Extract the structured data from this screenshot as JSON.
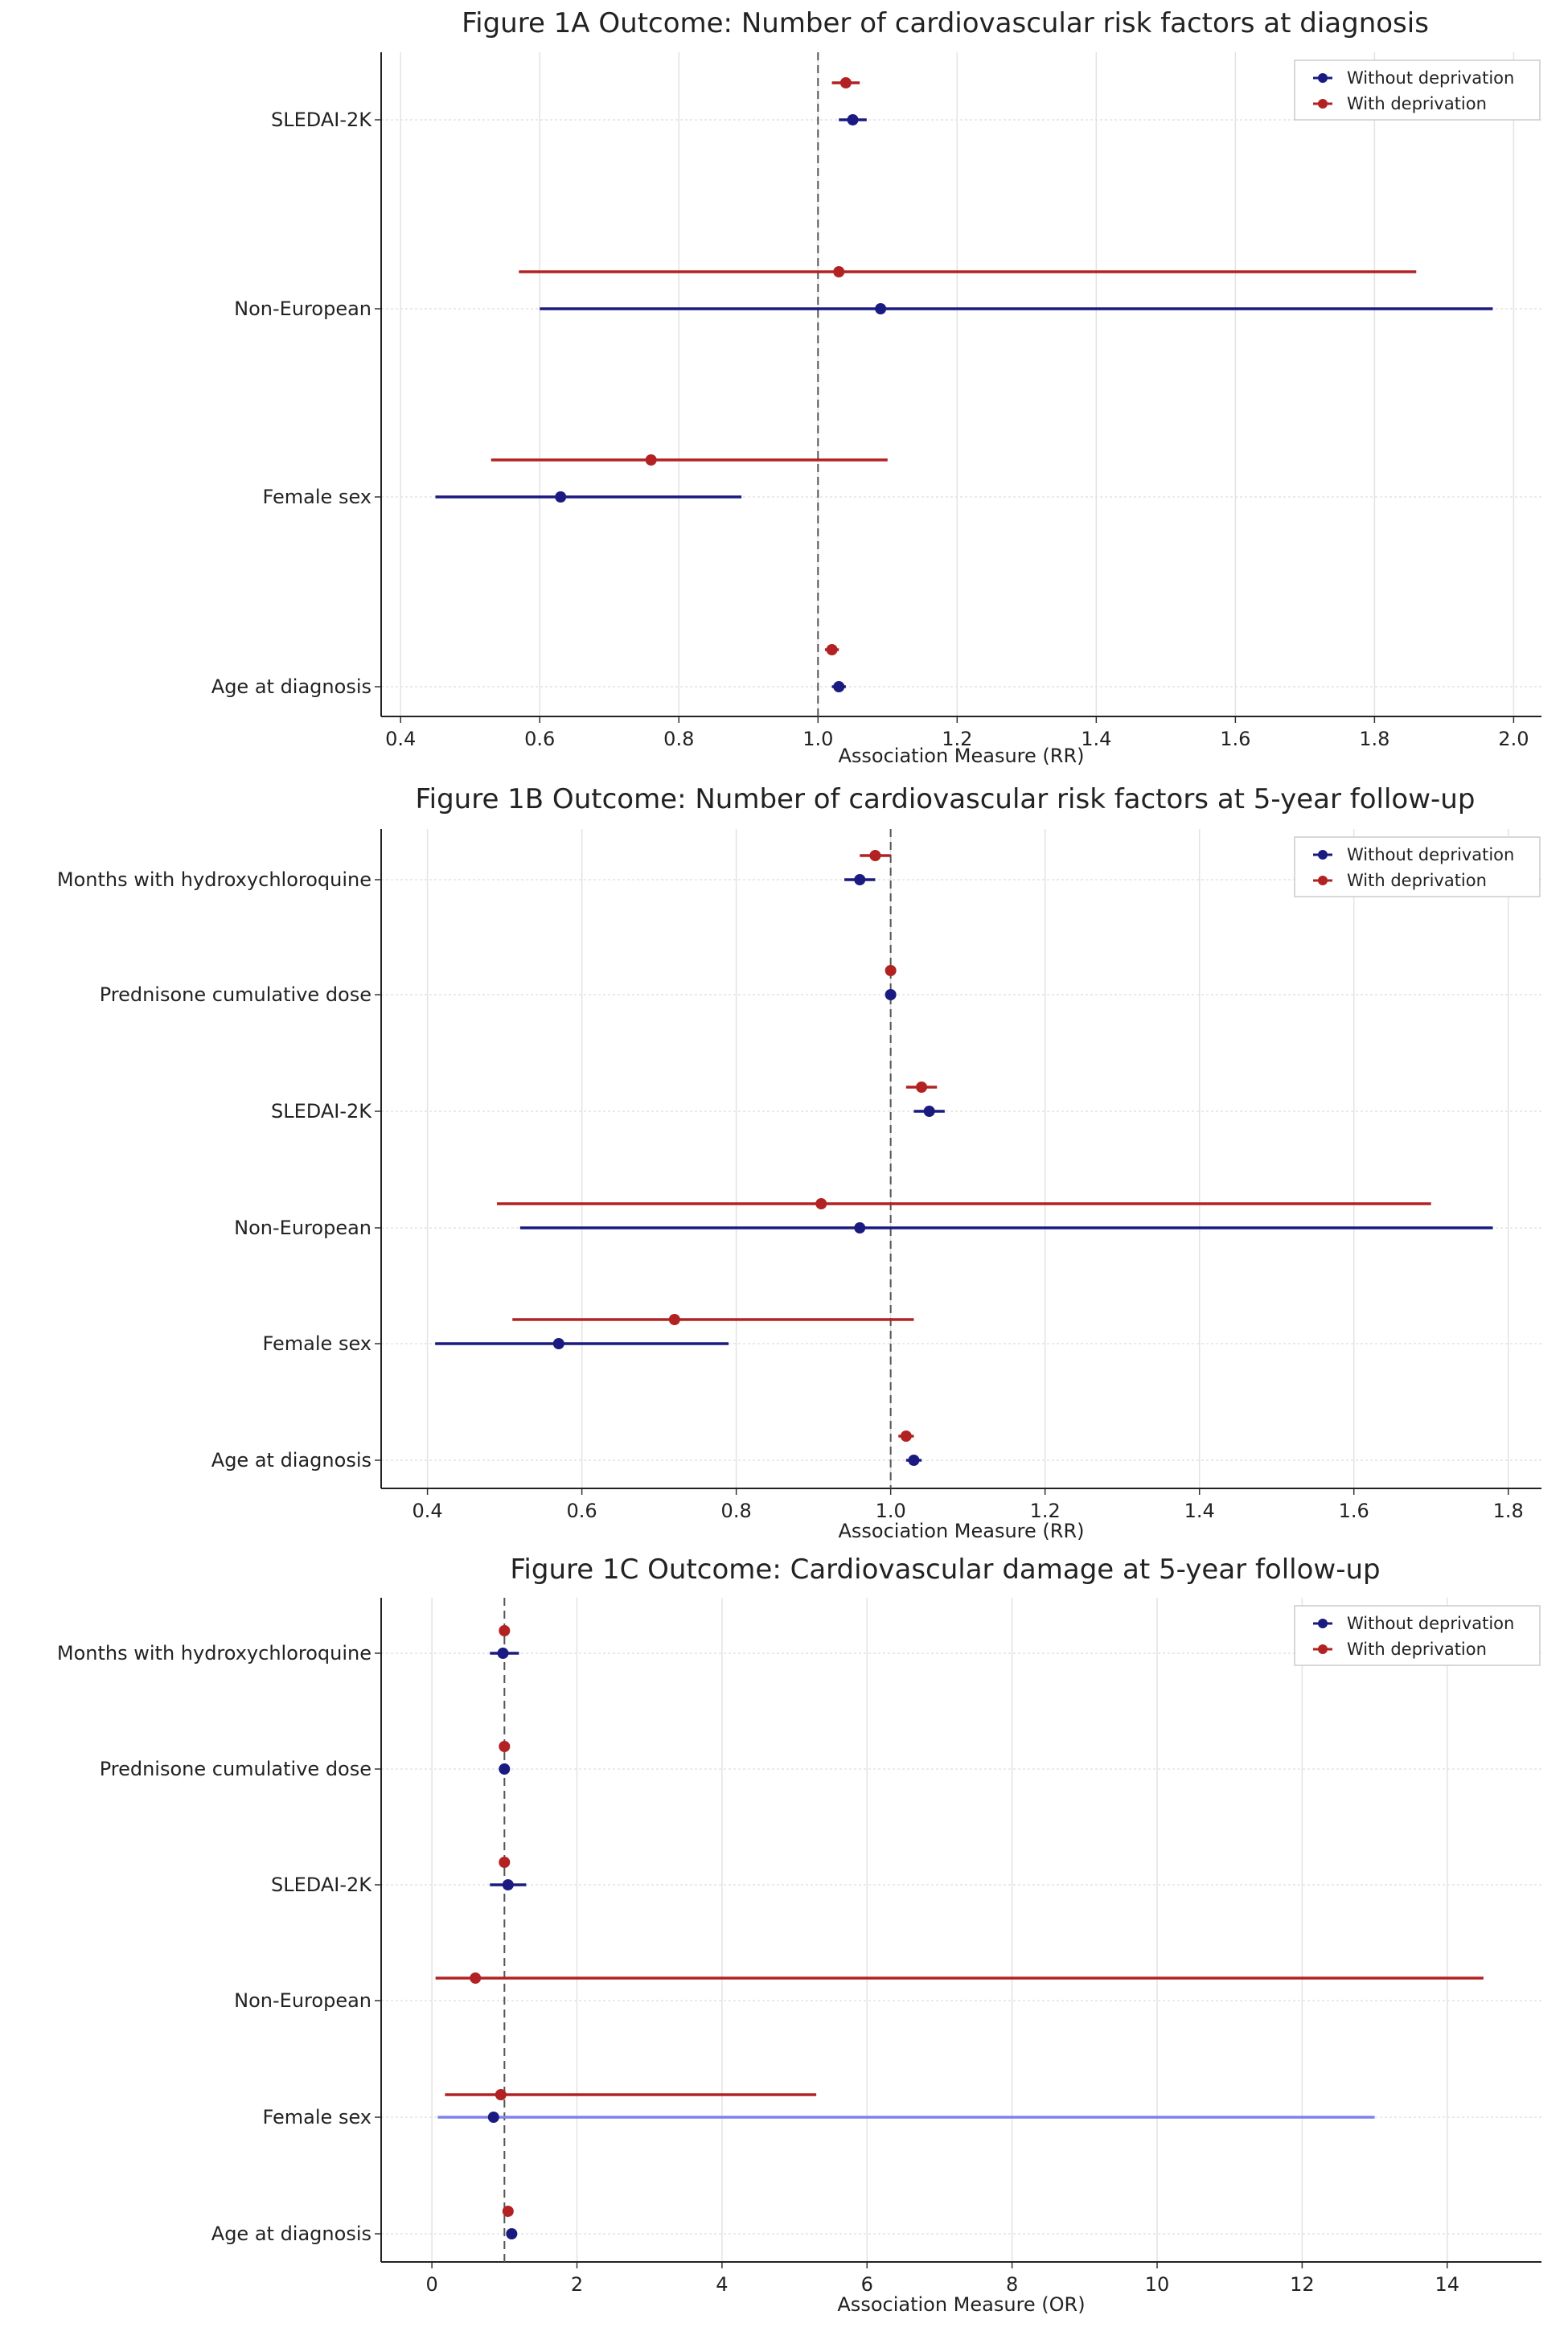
{
  "legend": {
    "without": "Without deprivation",
    "with": "With deprivation"
  },
  "colors": {
    "without": "#1a1a80",
    "with": "#b22222",
    "without_light": "#8080f0",
    "reference": "#555555",
    "grid": "#e3e3e3"
  },
  "chart_data": [
    {
      "type": "forest",
      "title": "Figure 1A Outcome: Number of cardiovascular risk factors at diagnosis",
      "xlabel": "Association Measure (RR)",
      "xlim": [
        0.372,
        2.04
      ],
      "xticks": [
        "0.4",
        "0.6",
        "0.8",
        "1.0",
        "1.2",
        "1.4",
        "1.6",
        "1.8",
        "2.0"
      ],
      "reference": 1.0,
      "categories": [
        "SLEDAI-2K",
        "Non-European",
        "Female sex",
        "Age at diagnosis"
      ],
      "series": [
        {
          "name": "Without deprivation",
          "estimate": [
            1.05,
            1.09,
            0.63,
            1.03
          ],
          "lower": [
            1.03,
            0.6,
            0.45,
            1.02
          ],
          "upper": [
            1.07,
            1.97,
            0.89,
            1.04
          ]
        },
        {
          "name": "With deprivation",
          "estimate": [
            1.04,
            1.03,
            0.76,
            1.02
          ],
          "lower": [
            1.02,
            0.57,
            0.53,
            1.01
          ],
          "upper": [
            1.06,
            1.86,
            1.1,
            1.03
          ]
        }
      ],
      "legend_position": "top-right"
    },
    {
      "type": "forest",
      "title": "Figure 1B Outcome: Number of cardiovascular risk factors at 5-year follow-up",
      "xlabel": "Association Measure (RR)",
      "xlim": [
        0.34,
        1.843
      ],
      "xticks": [
        "0.4",
        "0.6",
        "0.8",
        "1.0",
        "1.2",
        "1.4",
        "1.6",
        "1.8"
      ],
      "reference": 1.0,
      "categories": [
        "Months with hydroxychloroquine",
        "Prednisone cumulative dose",
        "SLEDAI-2K",
        "Non-European",
        "Female sex",
        "Age at diagnosis"
      ],
      "series": [
        {
          "name": "Without deprivation",
          "estimate": [
            0.96,
            1.0,
            1.05,
            0.96,
            0.57,
            1.03
          ],
          "lower": [
            0.94,
            1.0,
            1.03,
            0.52,
            0.41,
            1.02
          ],
          "upper": [
            0.98,
            1.0,
            1.07,
            1.78,
            0.79,
            1.04
          ]
        },
        {
          "name": "With deprivation",
          "estimate": [
            0.98,
            1.0,
            1.04,
            0.91,
            0.72,
            1.02
          ],
          "lower": [
            0.96,
            1.0,
            1.02,
            0.49,
            0.51,
            1.01
          ],
          "upper": [
            1.0,
            1.0,
            1.06,
            1.7,
            1.03,
            1.03
          ]
        }
      ],
      "legend_position": "top-right"
    },
    {
      "type": "forest",
      "title": "Figure 1C Outcome: Cardiovascular damage at 5-year follow-up",
      "xlabel": "Association Measure (OR)",
      "xlim": [
        -0.7,
        15.3
      ],
      "xticks": [
        "0",
        "2",
        "4",
        "6",
        "8",
        "10",
        "12",
        "14"
      ],
      "reference": 1.0,
      "categories": [
        "Months with hydroxychloroquine",
        "Prednisone cumulative dose",
        "SLEDAI-2K",
        "Non-European",
        "Female sex",
        "Age at diagnosis"
      ],
      "series": [
        {
          "name": "Without deprivation",
          "estimate": [
            0.98,
            1.0,
            1.05,
            null,
            0.85,
            1.1
          ],
          "lower": [
            0.8,
            1.0,
            0.8,
            null,
            0.08,
            1.05
          ],
          "upper": [
            1.2,
            1.0,
            1.3,
            null,
            13.0,
            1.15
          ]
        },
        {
          "name": "With deprivation",
          "estimate": [
            1.0,
            1.0,
            1.0,
            0.6,
            0.95,
            1.05
          ],
          "lower": [
            1.0,
            1.0,
            0.95,
            0.05,
            0.18,
            1.02
          ],
          "upper": [
            1.0,
            1.0,
            1.05,
            14.5,
            5.3,
            1.08
          ]
        }
      ],
      "legend_position": "top-right"
    }
  ]
}
